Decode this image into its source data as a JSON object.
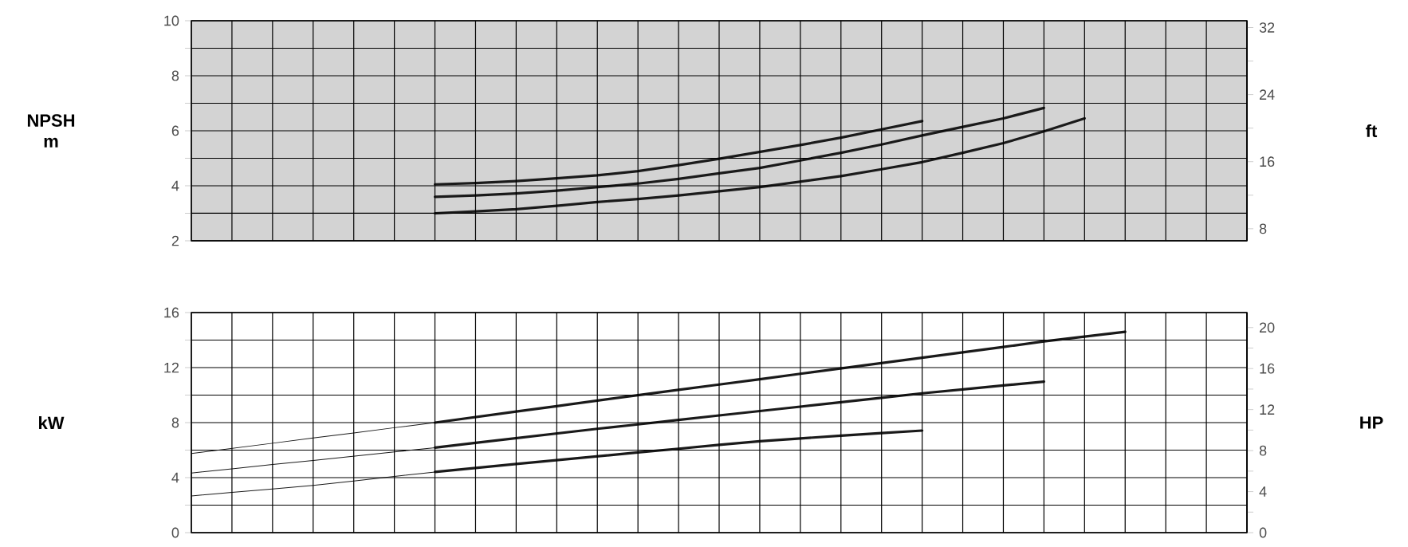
{
  "chart_data": [
    {
      "type": "line",
      "ylabel": "NPSH m",
      "y2label": "ft",
      "categories": [
        null,
        null,
        null,
        null,
        null,
        null,
        null,
        null,
        null,
        null,
        null,
        null,
        null,
        null,
        null,
        null,
        null,
        null,
        null,
        null,
        null,
        null,
        null,
        null,
        null,
        null,
        null
      ],
      "ylim": [
        2,
        10
      ],
      "yticks": [
        2,
        {
          "value": 3,
          "label": null
        },
        4,
        {
          "value": 5,
          "label": null
        },
        6,
        {
          "value": 7,
          "label": null
        },
        8,
        {
          "value": 9,
          "label": null
        },
        10
      ],
      "y2lim": [
        6.56,
        32.81
      ],
      "y2ticks": [
        8,
        {
          "value": 12,
          "label": null
        },
        16,
        {
          "value": 20,
          "label": null
        },
        24,
        {
          "value": 28,
          "label": null
        },
        32
      ],
      "tick_labels": "y",
      "grid": true,
      "bands": [
        {
          "axis": "y",
          "from": 2,
          "to": 10,
          "color": "#d3d3d3"
        }
      ],
      "series": [
        {
          "color": "#1a1a1a",
          "values": [
            null,
            null,
            null,
            null,
            null,
            null,
            4.05,
            4.1,
            4.17,
            4.27,
            4.38,
            4.53,
            4.75,
            4.98,
            5.23,
            5.48,
            5.75,
            6.05,
            6.35,
            null,
            null,
            null,
            null,
            null,
            null,
            null,
            null
          ]
        },
        {
          "color": "#1a1a1a",
          "values": [
            null,
            null,
            null,
            null,
            null,
            null,
            3.6,
            3.65,
            3.72,
            3.82,
            3.95,
            4.08,
            4.25,
            4.45,
            4.65,
            4.92,
            5.2,
            5.5,
            5.83,
            6.14,
            6.45,
            6.83,
            null,
            null,
            null,
            null,
            null
          ]
        },
        {
          "color": "#1a1a1a",
          "values": [
            null,
            null,
            null,
            null,
            null,
            null,
            3.0,
            3.07,
            3.15,
            3.27,
            3.41,
            3.52,
            3.65,
            3.8,
            3.95,
            4.15,
            4.35,
            4.6,
            4.86,
            5.2,
            5.55,
            5.98,
            6.45,
            null,
            null,
            null,
            null
          ]
        }
      ]
    },
    {
      "type": "line",
      "ylabel": "kW",
      "y2label": "HP",
      "categories": [
        null,
        null,
        null,
        null,
        null,
        null,
        null,
        null,
        null,
        null,
        null,
        null,
        null,
        null,
        null,
        null,
        null,
        null,
        null,
        null,
        null,
        null,
        null,
        null,
        null,
        null,
        null
      ],
      "ylim": [
        0,
        16
      ],
      "yticks": [
        0,
        {
          "value": 2,
          "label": null
        },
        4,
        {
          "value": 6,
          "label": null
        },
        8,
        {
          "value": 10,
          "label": null
        },
        12,
        {
          "value": 14,
          "label": null
        },
        16
      ],
      "y2lim": [
        0,
        21.46
      ],
      "y2ticks": [
        0,
        {
          "value": 2,
          "label": null
        },
        4,
        {
          "value": 6,
          "label": null
        },
        8,
        {
          "value": 10,
          "label": null
        },
        12,
        {
          "value": 14,
          "label": null
        },
        16,
        {
          "value": 18,
          "label": null
        },
        20
      ],
      "tick_labels": "y",
      "grid": true,
      "series": [
        {
          "color": "#1a1a1a",
          "values": [
            5.76,
            6.13,
            6.5,
            6.88,
            7.25,
            7.63,
            8.0,
            null,
            null,
            null,
            null,
            null,
            null,
            null,
            null,
            null,
            null,
            null,
            null,
            null,
            null,
            null,
            null,
            null,
            null,
            null,
            null
          ]
        },
        {
          "color": "#1a1a1a",
          "values": [
            null,
            null,
            null,
            null,
            null,
            null,
            8.0,
            8.4,
            8.8,
            9.2,
            9.6,
            9.99,
            10.38,
            10.77,
            11.15,
            11.55,
            11.94,
            12.33,
            12.72,
            13.11,
            13.5,
            13.91,
            14.25,
            14.6,
            null,
            null,
            null
          ]
        },
        {
          "color": "#1a1a1a",
          "values": [
            4.33,
            4.64,
            4.95,
            5.25,
            5.56,
            5.87,
            6.18,
            null,
            null,
            null,
            null,
            null,
            null,
            null,
            null,
            null,
            null,
            null,
            null,
            null,
            null,
            null,
            null,
            null,
            null,
            null,
            null
          ]
        },
        {
          "color": "#1a1a1a",
          "values": [
            null,
            null,
            null,
            null,
            null,
            null,
            6.18,
            6.53,
            6.87,
            7.21,
            7.55,
            7.87,
            8.2,
            8.52,
            8.84,
            9.16,
            9.48,
            9.8,
            10.13,
            10.41,
            10.7,
            10.98,
            null,
            null,
            null,
            null,
            null
          ]
        },
        {
          "color": "#1a1a1a",
          "values": [
            2.67,
            2.93,
            3.18,
            3.44,
            3.76,
            4.09,
            4.41,
            null,
            null,
            null,
            null,
            null,
            null,
            null,
            null,
            null,
            null,
            null,
            null,
            null,
            null,
            null,
            null,
            null,
            null,
            null,
            null
          ]
        },
        {
          "color": "#1a1a1a",
          "values": [
            null,
            null,
            null,
            null,
            null,
            null,
            4.41,
            4.7,
            4.99,
            5.27,
            5.55,
            5.83,
            6.1,
            6.38,
            6.64,
            6.85,
            7.05,
            7.24,
            7.42,
            null,
            null,
            null,
            null,
            null,
            null,
            null,
            null
          ]
        }
      ]
    }
  ]
}
